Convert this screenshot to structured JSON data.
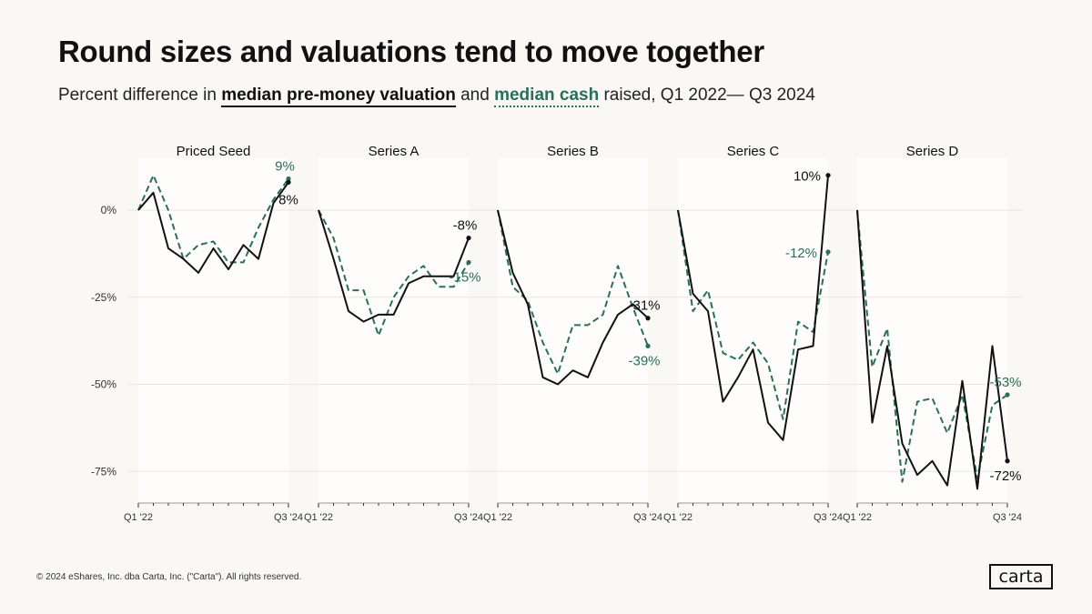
{
  "header": {
    "title": "Round sizes and valuations tend to move together",
    "subtitle_prefix": "Percent difference in ",
    "subtitle_valuation": "median pre-money valuation",
    "subtitle_mid": " and ",
    "subtitle_cash": "median cash",
    "subtitle_suffix": " raised, Q1 2022— Q3 2024"
  },
  "footer": {
    "copyright": "© 2024 eShares, Inc. dba Carta, Inc. (\"Carta\"). All rights reserved.",
    "logo": "carta"
  },
  "colors": {
    "valuation": "#111111",
    "cash": "#2a6e5c",
    "background": "#faf8f4",
    "panel": "#fefdfb",
    "gridline": "#e9e5de"
  },
  "chart_data": {
    "type": "line",
    "title": "Round sizes and valuations tend to move together",
    "ylim": [
      -85,
      15
    ],
    "yticks": [
      0,
      -25,
      -50,
      -75
    ],
    "ytick_labels": [
      "0%",
      "-25%",
      "-50%",
      "-75%"
    ],
    "x_first_label": "Q1 '22",
    "x_last_label": "Q3 '24",
    "quarters": 11,
    "legend": [
      "median pre-money valuation",
      "median cash"
    ],
    "panels": [
      {
        "name": "Priced Seed",
        "series": [
          {
            "name": "median pre-money valuation",
            "style": "solid",
            "values": [
              0,
              5,
              -11,
              -14,
              -18,
              -11,
              -17,
              -10,
              -14,
              2,
              8
            ],
            "end_label": "8%"
          },
          {
            "name": "median cash",
            "style": "dashed",
            "values": [
              0,
              10,
              0,
              -14,
              -10,
              -9,
              -15,
              -15,
              -5,
              3,
              9
            ],
            "end_label": "9%"
          }
        ]
      },
      {
        "name": "Series A",
        "series": [
          {
            "name": "median pre-money valuation",
            "style": "solid",
            "values": [
              0,
              -14,
              -29,
              -32,
              -30,
              -30,
              -21,
              -19,
              -19,
              -19,
              -8
            ],
            "end_label": "-8%"
          },
          {
            "name": "median cash",
            "style": "dashed",
            "values": [
              0,
              -8,
              -23,
              -23,
              -36,
              -25,
              -19,
              -16,
              -22,
              -22,
              -15
            ],
            "end_label": "-15%"
          }
        ]
      },
      {
        "name": "Series B",
        "series": [
          {
            "name": "median pre-money valuation",
            "style": "solid",
            "values": [
              0,
              -18,
              -27,
              -48,
              -50,
              -46,
              -48,
              -38,
              -30,
              -27,
              -31
            ],
            "end_label": "-31%"
          },
          {
            "name": "median cash",
            "style": "dashed",
            "values": [
              0,
              -22,
              -26,
              -38,
              -47,
              -33,
              -33,
              -30,
              -16,
              -28,
              -39
            ],
            "end_label": "-39%"
          }
        ]
      },
      {
        "name": "Series C",
        "series": [
          {
            "name": "median pre-money valuation",
            "style": "solid",
            "values": [
              0,
              -24,
              -29,
              -55,
              -48,
              -40,
              -61,
              -66,
              -40,
              -39,
              10
            ],
            "end_label": "10%"
          },
          {
            "name": "median cash",
            "style": "dashed",
            "values": [
              0,
              -29,
              -23,
              -41,
              -43,
              -38,
              -44,
              -60,
              -32,
              -35,
              -12
            ],
            "end_label": "-12%"
          }
        ]
      },
      {
        "name": "Series D",
        "series": [
          {
            "name": "median pre-money valuation",
            "style": "solid",
            "values": [
              0,
              -61,
              -39,
              -67,
              -76,
              -72,
              -79,
              -49,
              -80,
              -39,
              -72
            ],
            "end_label": "-72%"
          },
          {
            "name": "median cash",
            "style": "dashed",
            "values": [
              0,
              -45,
              -34,
              -78,
              -55,
              -54,
              -64,
              -53,
              -77,
              -56,
              -53
            ],
            "end_label": "-53%"
          }
        ]
      }
    ]
  }
}
